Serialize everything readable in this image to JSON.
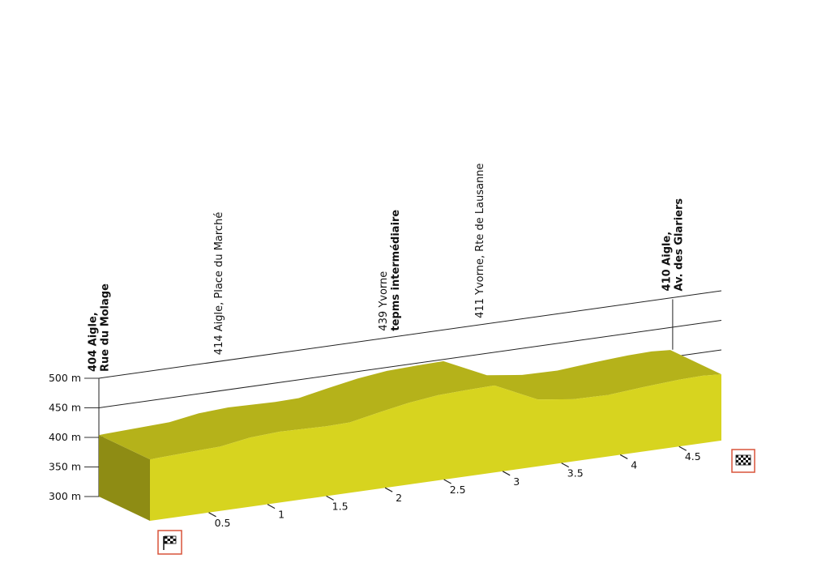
{
  "chart_data": {
    "type": "profile3d",
    "color": "#d7d41f",
    "x": [
      0,
      0.6,
      0.85,
      1.1,
      1.3,
      1.5,
      1.7,
      1.95,
      2.2,
      2.45,
      2.7,
      2.93,
      3.3,
      3.6,
      3.9,
      4.2,
      4.5,
      4.7,
      4.86
    ],
    "values": [
      404,
      409,
      417,
      420,
      419,
      418,
      419,
      429,
      438,
      444,
      446,
      447,
      413,
      405,
      404,
      409,
      413,
      414,
      412
    ],
    "xlim": [
      0,
      4.86
    ],
    "xticks": [
      0.5,
      1,
      1.5,
      2,
      2.5,
      3,
      3.5,
      4,
      4.5
    ],
    "ylim": [
      300,
      500
    ],
    "yticks": [
      {
        "value": 300,
        "label": "300 m"
      },
      {
        "value": 350,
        "label": "350 m"
      },
      {
        "value": 400,
        "label": "400 m"
      },
      {
        "value": 450,
        "label": "450 m"
      },
      {
        "value": 500,
        "label": "500 m"
      }
    ],
    "grid": true,
    "annotations": [
      {
        "x": 0,
        "leader": true,
        "lines": [
          {
            "text": "404 Aigle,",
            "bold": true
          },
          {
            "text": "Rue du Molage",
            "bold": true
          }
        ]
      },
      {
        "x": 1.02,
        "leader": false,
        "lines": [
          {
            "text": "414 Aigle, Place du Marché",
            "bold": false
          }
        ]
      },
      {
        "x": 2.47,
        "leader": false,
        "lines": [
          {
            "text": "439 Yvorne",
            "bold": false
          },
          {
            "text": "tepms intermédiaire",
            "bold": true
          }
        ]
      },
      {
        "x": 3.24,
        "leader": false,
        "lines": [
          {
            "text": "411 Yvorne, Rte de Lausanne",
            "bold": false
          }
        ]
      },
      {
        "x": 4.88,
        "leader": true,
        "lines": [
          {
            "text": "410 Aigle,",
            "bold": true
          },
          {
            "text": "Av. des Glariers",
            "bold": true
          }
        ]
      }
    ]
  }
}
